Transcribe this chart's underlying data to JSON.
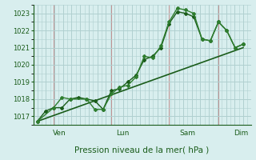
{
  "bg_color": "#d8eeee",
  "grid_color": "#b0d0d0",
  "line_color_dark": "#1a5c1a",
  "line_color_mid": "#2e7d2e",
  "xlabel": "Pression niveau de la mer( hPa )",
  "ylim": [
    1016.5,
    1023.5
  ],
  "yticks": [
    1017,
    1018,
    1019,
    1020,
    1021,
    1022,
    1023
  ],
  "day_labels": [
    "Ven",
    "Lun",
    "Sam",
    "Dim"
  ],
  "day_positions": [
    0.083,
    0.375,
    0.666,
    0.916
  ],
  "series1": [
    [
      0.0,
      1016.7
    ],
    [
      0.042,
      1017.3
    ],
    [
      0.083,
      1017.5
    ],
    [
      0.125,
      1017.5
    ],
    [
      0.166,
      1018.0
    ],
    [
      0.208,
      1018.1
    ],
    [
      0.25,
      1018.0
    ],
    [
      0.291,
      1017.9
    ],
    [
      0.333,
      1017.4
    ],
    [
      0.375,
      1018.5
    ],
    [
      0.416,
      1018.6
    ],
    [
      0.458,
      1019.0
    ],
    [
      0.5,
      1019.4
    ],
    [
      0.541,
      1020.3
    ],
    [
      0.583,
      1020.5
    ],
    [
      0.625,
      1021.0
    ],
    [
      0.666,
      1022.4
    ],
    [
      0.708,
      1023.1
    ],
    [
      0.75,
      1023.0
    ],
    [
      0.791,
      1022.8
    ],
    [
      0.833,
      1021.5
    ],
    [
      0.875,
      1021.4
    ],
    [
      0.916,
      1022.5
    ],
    [
      0.958,
      1022.0
    ],
    [
      1.0,
      1021.0
    ],
    [
      1.041,
      1021.2
    ]
  ],
  "series2": [
    [
      0.0,
      1016.7
    ],
    [
      0.083,
      1017.5
    ],
    [
      0.125,
      1018.1
    ],
    [
      0.166,
      1018.0
    ],
    [
      0.25,
      1018.0
    ],
    [
      0.291,
      1017.4
    ],
    [
      0.333,
      1017.4
    ],
    [
      0.375,
      1018.3
    ],
    [
      0.416,
      1018.7
    ],
    [
      0.458,
      1018.8
    ],
    [
      0.5,
      1019.3
    ],
    [
      0.541,
      1020.5
    ],
    [
      0.583,
      1020.4
    ],
    [
      0.625,
      1021.1
    ],
    [
      0.666,
      1022.5
    ],
    [
      0.708,
      1023.3
    ],
    [
      0.75,
      1023.2
    ],
    [
      0.791,
      1023.0
    ],
    [
      0.833,
      1021.5
    ],
    [
      0.875,
      1021.4
    ],
    [
      0.916,
      1022.5
    ],
    [
      0.958,
      1022.0
    ],
    [
      1.0,
      1021.0
    ],
    [
      1.041,
      1021.2
    ]
  ],
  "series3": [
    [
      0.0,
      1016.7
    ],
    [
      1.041,
      1021.0
    ]
  ]
}
